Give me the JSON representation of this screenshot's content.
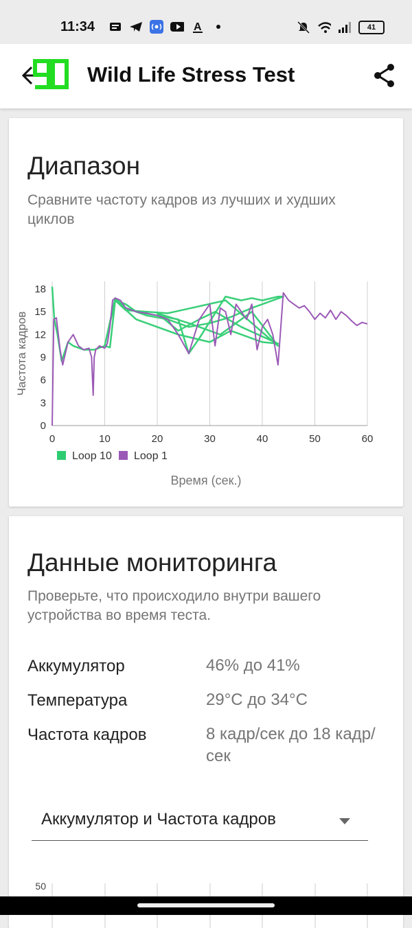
{
  "status": {
    "time": "11:34",
    "battery": "41"
  },
  "appbar": {
    "title": "Wild Life Stress Test",
    "logo_text": "90",
    "icons": [
      "back-arrow-icon",
      "share-icon"
    ]
  },
  "range_card": {
    "title": "Диапазон",
    "subtitle": "Сравните частоту кадров из лучших и худших циклов"
  },
  "chart_data": {
    "type": "line",
    "ylabel": "Частота кадров",
    "xlabel": "Время (сек.)",
    "xlim": [
      0,
      60
    ],
    "ylim": [
      0,
      19
    ],
    "x_ticks": [
      0,
      10,
      20,
      30,
      40,
      50,
      60
    ],
    "y_ticks": [
      0,
      3,
      6,
      9,
      12,
      15,
      18
    ],
    "grid": "vertical",
    "legend_position": "bottom-left",
    "series": [
      {
        "name": "Loop 10",
        "color": "#2ecc71",
        "x": [
          0,
          0.4,
          1,
          1.8,
          3,
          4,
          6,
          8,
          10,
          11,
          12,
          14,
          16,
          20,
          24,
          26,
          28,
          31,
          33,
          36,
          38,
          40,
          43,
          44,
          38,
          34,
          30,
          26,
          22,
          18,
          14,
          12,
          10,
          12,
          16,
          24,
          30,
          34,
          40,
          43,
          36,
          31,
          28,
          24,
          20,
          26,
          32,
          38,
          43,
          33,
          22,
          14,
          12
        ],
        "y": [
          18.3,
          14,
          12,
          8.5,
          11,
          10.5,
          10,
          10,
          10.5,
          10.3,
          16.5,
          16,
          15,
          14.5,
          14,
          9.5,
          11.5,
          14.8,
          17,
          16.5,
          16.8,
          16.5,
          17,
          17,
          15.5,
          14.3,
          13.5,
          13,
          14,
          14.5,
          15.5,
          16.8,
          10.5,
          16.5,
          14,
          12,
          11,
          12.5,
          11,
          10.8,
          13,
          15,
          14,
          12.5,
          14.8,
          13.5,
          12,
          15,
          10.5,
          16.5,
          14.8,
          15.2,
          16.5
        ]
      },
      {
        "name": "Loop 1",
        "color": "#9b59b6",
        "x": [
          0,
          0.3,
          0.8,
          1.5,
          2,
          3,
          4,
          5,
          6,
          7,
          7.5,
          7.8,
          8,
          8.3,
          9,
          10,
          10.5,
          11,
          11.5,
          12,
          13,
          14,
          16,
          18,
          20,
          22,
          24,
          26,
          28,
          30,
          31,
          32,
          33,
          34,
          35,
          36,
          37,
          38,
          39,
          40,
          41,
          42,
          43,
          44,
          44.5,
          45,
          46,
          47,
          48,
          49,
          50,
          51,
          52,
          53,
          54,
          55,
          56,
          57,
          58,
          59,
          60
        ],
        "y": [
          0,
          14,
          14.2,
          10,
          8,
          11,
          12,
          10.5,
          10,
          10.2,
          9,
          4,
          9,
          10,
          10.5,
          10.2,
          10.8,
          13,
          16.5,
          16.8,
          16.5,
          15.5,
          15,
          14.8,
          14.5,
          14,
          12,
          9.5,
          14,
          16,
          10.5,
          15.5,
          15,
          12,
          16,
          15,
          14,
          16,
          10,
          13,
          14,
          12,
          8,
          17.5,
          17,
          16.5,
          16,
          15.5,
          15.8,
          15,
          14,
          14.8,
          14.2,
          15.2,
          14,
          15,
          14.5,
          13.8,
          13.2,
          13.6,
          13.4
        ]
      }
    ]
  },
  "monitoring": {
    "title": "Данные мониторинга",
    "subtitle": "Проверьте, что происходило внутри вашего устройства во время теста.",
    "rows": [
      {
        "label": "Аккумулятор",
        "value": "46% до 41%"
      },
      {
        "label": "Температура",
        "value": "29°C до 34°C"
      },
      {
        "label": "Частота кадров",
        "value": "8 кадр/сек до 18 кадр/сек"
      }
    ],
    "dropdown_value": "Аккумулятор и Частота кадров",
    "next_chart_tick": "50"
  }
}
